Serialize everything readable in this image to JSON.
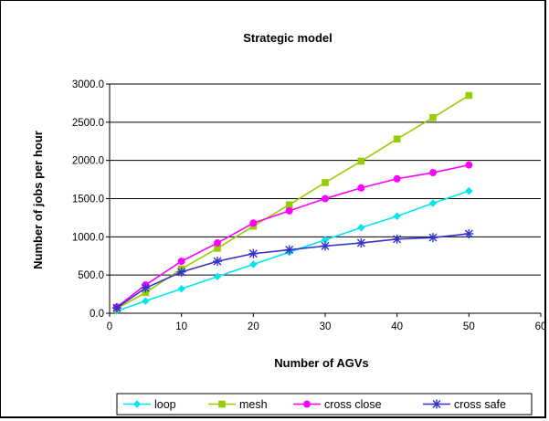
{
  "chart_data": {
    "type": "line",
    "title": "Strategic model",
    "xlabel": "Number of AGVs",
    "ylabel": "Number of jobs per hour",
    "xlim": [
      0,
      60
    ],
    "ylim": [
      0,
      3000
    ],
    "x_ticks": [
      "0",
      "10",
      "20",
      "30",
      "40",
      "50",
      "60"
    ],
    "y_ticks": [
      "0.0",
      "500.0",
      "1000.0",
      "1500.0",
      "2000.0",
      "2500.0",
      "3000.0"
    ],
    "grid": "horizontal",
    "legend_position": "bottom",
    "x": [
      1,
      5,
      10,
      15,
      20,
      25,
      30,
      35,
      40,
      45,
      50
    ],
    "series": [
      {
        "name": "loop",
        "color": "#00e5ee",
        "marker": "diamond",
        "values": [
          30,
          160,
          320,
          480,
          640,
          800,
          960,
          1120,
          1270,
          1440,
          1600
        ]
      },
      {
        "name": "mesh",
        "color": "#99cc00",
        "marker": "square",
        "values": [
          60,
          270,
          580,
          850,
          1140,
          1420,
          1710,
          1990,
          2280,
          2560,
          2850
        ]
      },
      {
        "name": "cross close",
        "color": "#ff00ff",
        "marker": "circle",
        "values": [
          80,
          370,
          680,
          920,
          1180,
          1340,
          1500,
          1640,
          1760,
          1840,
          1940
        ]
      },
      {
        "name": "cross safe",
        "color": "#3333cc",
        "marker": "star",
        "values": [
          70,
          330,
          540,
          680,
          780,
          830,
          880,
          920,
          970,
          990,
          1040
        ]
      }
    ]
  }
}
